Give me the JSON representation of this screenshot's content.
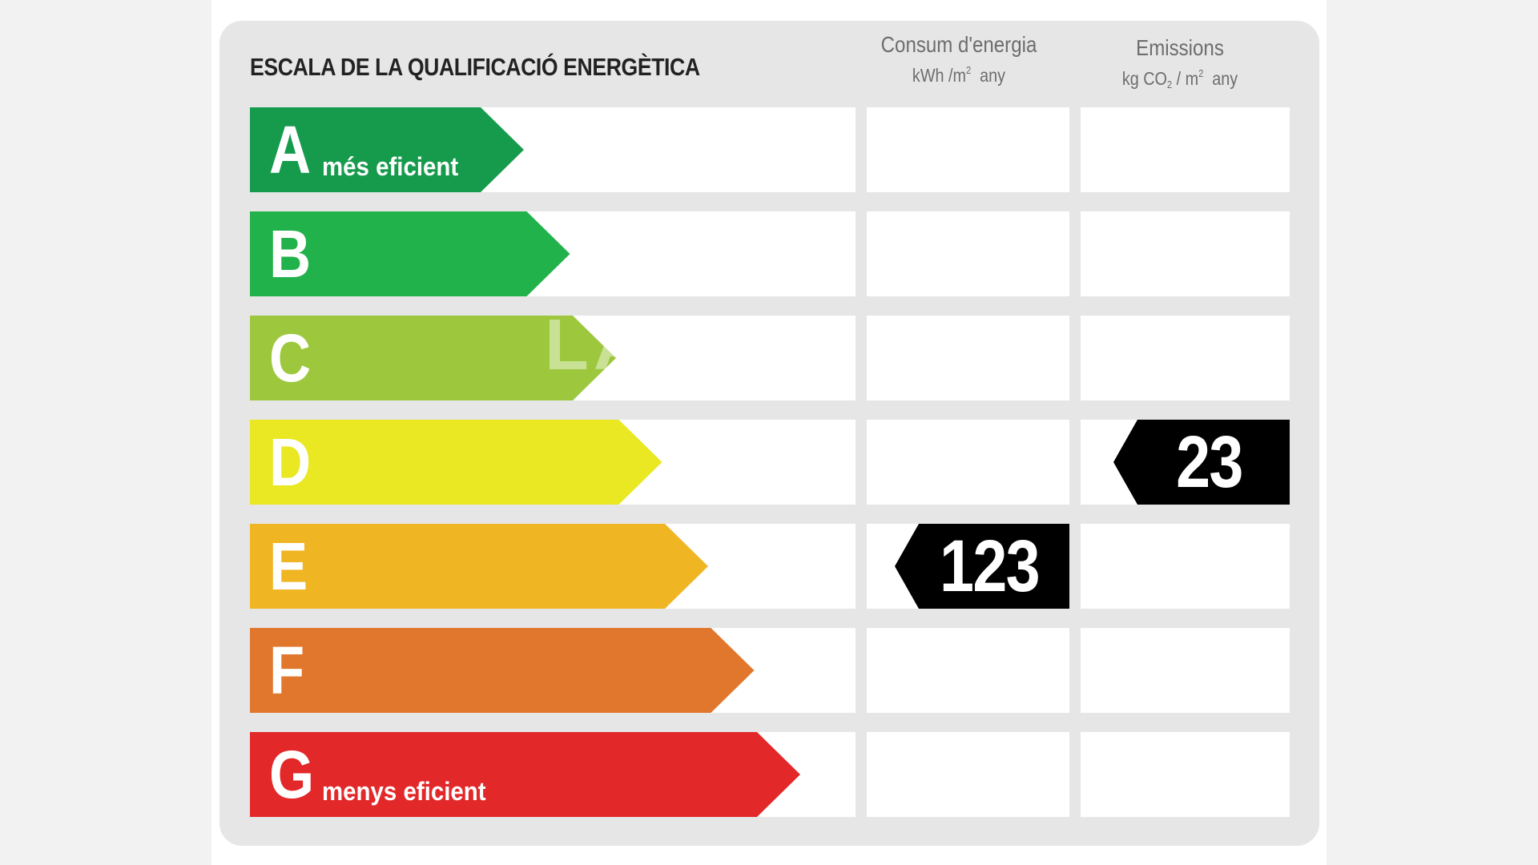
{
  "title": "ESCALA DE LA QUALIFICACIÓ ENERGÈTICA",
  "columns": {
    "consum": {
      "label": "Consum d'energia",
      "unit_prefix": "kWh /m",
      "unit_sup": "2",
      "unit_suffix": "any"
    },
    "emissions": {
      "label": "Emissions",
      "unit_prefix": "kg CO",
      "unit_sub": "2",
      "unit_mid": " / m",
      "unit_sup": "2",
      "unit_suffix": "any"
    }
  },
  "classes": [
    {
      "letter": "A",
      "sublabel": "més eficient",
      "color": "#169b4d"
    },
    {
      "letter": "B",
      "sublabel": "",
      "color": "#22b24b"
    },
    {
      "letter": "C",
      "sublabel": "",
      "color": "#9dc83e"
    },
    {
      "letter": "D",
      "sublabel": "",
      "color": "#e9e822"
    },
    {
      "letter": "E",
      "sublabel": "",
      "color": "#f0b523"
    },
    {
      "letter": "F",
      "sublabel": "",
      "color": "#e1772c"
    },
    {
      "letter": "G",
      "sublabel": "menys eficient",
      "color": "#e3282a"
    }
  ],
  "ratings": {
    "consum": {
      "value": "123",
      "class": "E"
    },
    "emissions": {
      "value": "23",
      "class": "D"
    }
  },
  "watermark": "LA"
}
